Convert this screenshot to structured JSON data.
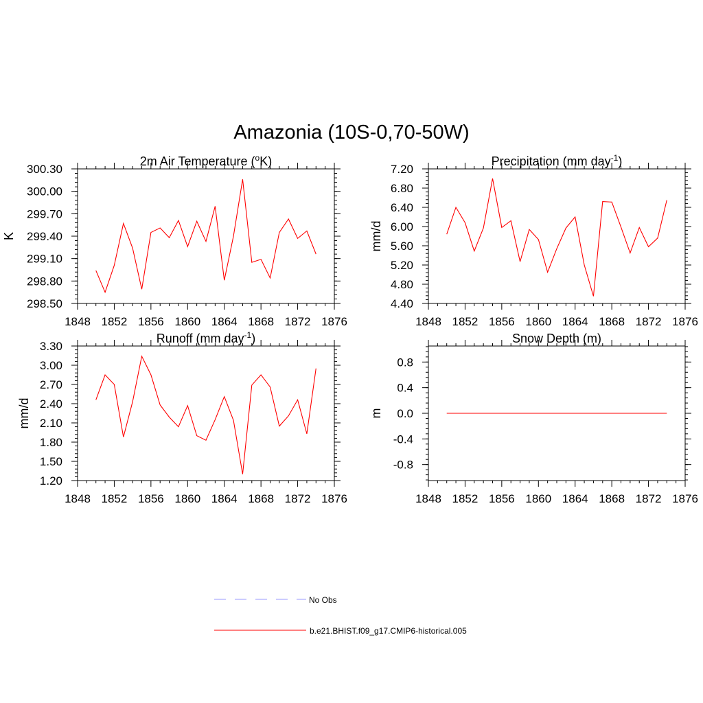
{
  "figure": {
    "title": "Amazonia (10S-0,70-50W)"
  },
  "chart_data": [
    {
      "type": "line",
      "title": "2m Air Temperature (oK)",
      "title_parts": {
        "pre": "2m Air Temperature (",
        "sup": "o",
        "post": "K)"
      },
      "xlabel": "",
      "ylabel": "K",
      "xlim": [
        1848,
        1876
      ],
      "ylim": [
        298.5,
        300.3
      ],
      "x_ticks": [
        1848,
        1852,
        1856,
        1860,
        1864,
        1868,
        1872,
        1876
      ],
      "y_ticks": [
        "298.50",
        "298.80",
        "299.10",
        "299.40",
        "299.70",
        "300.00",
        "300.30"
      ],
      "y_tick_values": [
        298.5,
        298.8,
        299.1,
        299.4,
        299.7,
        300.0,
        300.3
      ],
      "y_minor_step": 0.06,
      "series": [
        {
          "name": "b.e21.BHIST.f09_g17.CMIP6-historical.005",
          "x": [
            1850,
            1851,
            1852,
            1853,
            1854,
            1855,
            1856,
            1857,
            1858,
            1859,
            1860,
            1861,
            1862,
            1863,
            1864,
            1865,
            1866,
            1867,
            1868,
            1869,
            1870,
            1871,
            1872,
            1873,
            1874
          ],
          "values": [
            298.94,
            298.65,
            299.01,
            299.57,
            299.24,
            298.69,
            299.45,
            299.51,
            299.38,
            299.61,
            299.26,
            299.6,
            299.33,
            299.8,
            298.81,
            299.4,
            300.16,
            299.05,
            299.09,
            298.84,
            299.45,
            299.63,
            299.37,
            299.47,
            299.16
          ]
        }
      ]
    },
    {
      "type": "line",
      "title": "Precipitation (mm day-1)",
      "title_parts": {
        "pre": "Precipitation (mm day",
        "sup": "-1",
        "post": ")"
      },
      "xlabel": "",
      "ylabel": "mm/d",
      "xlim": [
        1848,
        1876
      ],
      "ylim": [
        4.4,
        7.2
      ],
      "x_ticks": [
        1848,
        1852,
        1856,
        1860,
        1864,
        1868,
        1872,
        1876
      ],
      "y_ticks": [
        "4.40",
        "4.80",
        "5.20",
        "5.60",
        "6.00",
        "6.40",
        "6.80",
        "7.20"
      ],
      "y_tick_values": [
        4.4,
        4.8,
        5.2,
        5.6,
        6.0,
        6.4,
        6.8,
        7.2
      ],
      "y_minor_step": 0.08,
      "series": [
        {
          "name": "b.e21.BHIST.f09_g17.CMIP6-historical.005",
          "x": [
            1850,
            1851,
            1852,
            1853,
            1854,
            1855,
            1856,
            1857,
            1858,
            1859,
            1860,
            1861,
            1862,
            1863,
            1864,
            1865,
            1866,
            1867,
            1868,
            1869,
            1870,
            1871,
            1872,
            1873,
            1874
          ],
          "values": [
            5.84,
            6.4,
            6.08,
            5.49,
            5.97,
            7.0,
            5.98,
            6.12,
            5.27,
            5.94,
            5.73,
            5.05,
            5.54,
            5.97,
            6.2,
            5.2,
            4.55,
            6.52,
            6.51,
            5.99,
            5.45,
            5.98,
            5.58,
            5.76,
            6.55
          ]
        }
      ]
    },
    {
      "type": "line",
      "title": "Runoff (mm day-1)",
      "title_parts": {
        "pre": "Runoff (mm day",
        "sup": "-1",
        "post": ")"
      },
      "xlabel": "",
      "ylabel": "mm/d",
      "xlim": [
        1848,
        1876
      ],
      "ylim": [
        1.2,
        3.3
      ],
      "x_ticks": [
        1848,
        1852,
        1856,
        1860,
        1864,
        1868,
        1872,
        1876
      ],
      "y_ticks": [
        "1.20",
        "1.50",
        "1.80",
        "2.10",
        "2.40",
        "2.70",
        "3.00",
        "3.30"
      ],
      "y_tick_values": [
        1.2,
        1.5,
        1.8,
        2.1,
        2.4,
        2.7,
        3.0,
        3.3
      ],
      "y_minor_step": 0.06,
      "series": [
        {
          "name": "b.e21.BHIST.f09_g17.CMIP6-historical.005",
          "x": [
            1850,
            1851,
            1852,
            1853,
            1854,
            1855,
            1856,
            1857,
            1858,
            1859,
            1860,
            1861,
            1862,
            1863,
            1864,
            1865,
            1866,
            1867,
            1868,
            1869,
            1870,
            1871,
            1872,
            1873,
            1874
          ],
          "values": [
            2.46,
            2.85,
            2.7,
            1.88,
            2.43,
            3.14,
            2.85,
            2.38,
            2.19,
            2.04,
            2.37,
            1.9,
            1.83,
            2.15,
            2.51,
            2.14,
            1.3,
            2.69,
            2.85,
            2.66,
            2.05,
            2.21,
            2.46,
            1.93,
            2.95
          ]
        }
      ]
    },
    {
      "type": "line",
      "title": "Snow Depth (m)",
      "title_parts": {
        "pre": "Snow Depth (m)",
        "sup": "",
        "post": ""
      },
      "xlabel": "",
      "ylabel": "m",
      "xlim": [
        1848,
        1876
      ],
      "ylim": [
        -1.05,
        1.05
      ],
      "x_ticks": [
        1848,
        1852,
        1856,
        1860,
        1864,
        1868,
        1872,
        1876
      ],
      "y_ticks": [
        "-0.8",
        "-0.4",
        "0.0",
        "0.4",
        "0.8"
      ],
      "y_tick_values": [
        -0.8,
        -0.4,
        0.0,
        0.4,
        0.8
      ],
      "y_minor_step": 0.08,
      "series": [
        {
          "name": "b.e21.BHIST.f09_g17.CMIP6-historical.005",
          "x": [
            1850,
            1851,
            1852,
            1853,
            1854,
            1855,
            1856,
            1857,
            1858,
            1859,
            1860,
            1861,
            1862,
            1863,
            1864,
            1865,
            1866,
            1867,
            1868,
            1869,
            1870,
            1871,
            1872,
            1873,
            1874
          ],
          "values": [
            0,
            0,
            0,
            0,
            0,
            0,
            0,
            0,
            0,
            0,
            0,
            0,
            0,
            0,
            0,
            0,
            0,
            0,
            0,
            0,
            0,
            0,
            0,
            0,
            0
          ]
        }
      ]
    }
  ],
  "legend": {
    "items": [
      {
        "label": "No Obs",
        "color": "#9999ff",
        "style": "dashed"
      },
      {
        "label": "b.e21.BHIST.f09_g17.CMIP6-historical.005",
        "color": "#ff0000",
        "style": "solid"
      }
    ]
  },
  "colors": {
    "series": "#ff0000",
    "obs": "#9999ff",
    "axis": "#000000"
  }
}
